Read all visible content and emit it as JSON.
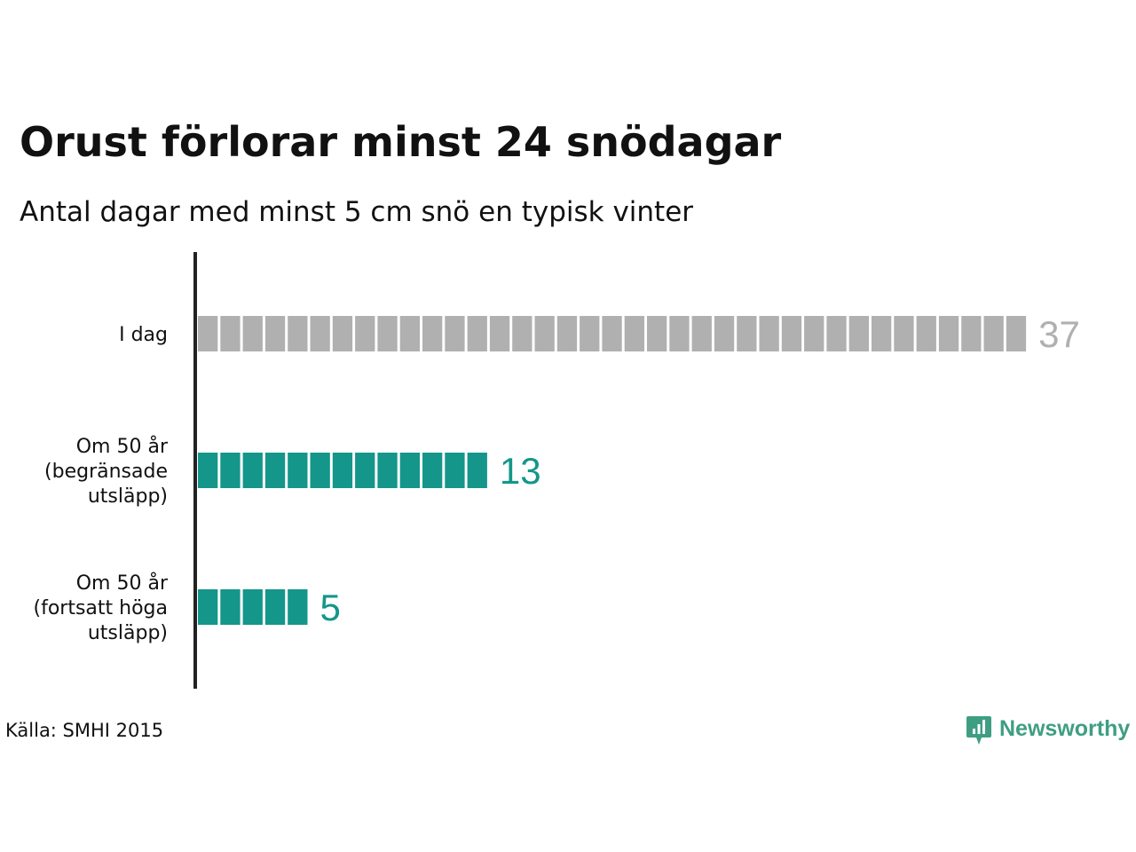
{
  "title": "Orust förlorar minst 24 snödagar",
  "subtitle": "Antal dagar med minst 5 cm snö en typisk vinter",
  "source": "Källa: SMHI 2015",
  "brand": {
    "name": "Newsworthy",
    "color": "#3f9e82",
    "icon": "newsworthy-logo-icon"
  },
  "colors": {
    "gray": "#b0b0b0",
    "teal": "#14968a",
    "axis": "#222222"
  },
  "chart_data": {
    "type": "bar",
    "orientation": "horizontal",
    "unit_style": "stacked-squares",
    "categories": [
      [
        "I dag"
      ],
      [
        "Om 50 år",
        "(begränsade",
        "utsläpp)"
      ],
      [
        "Om 50 år",
        "(fortsatt höga",
        "utsläpp)"
      ]
    ],
    "values": [
      37,
      13,
      5
    ],
    "bar_colors": [
      "gray",
      "teal",
      "teal"
    ],
    "data_labels": [
      "37",
      "13",
      "5"
    ]
  }
}
